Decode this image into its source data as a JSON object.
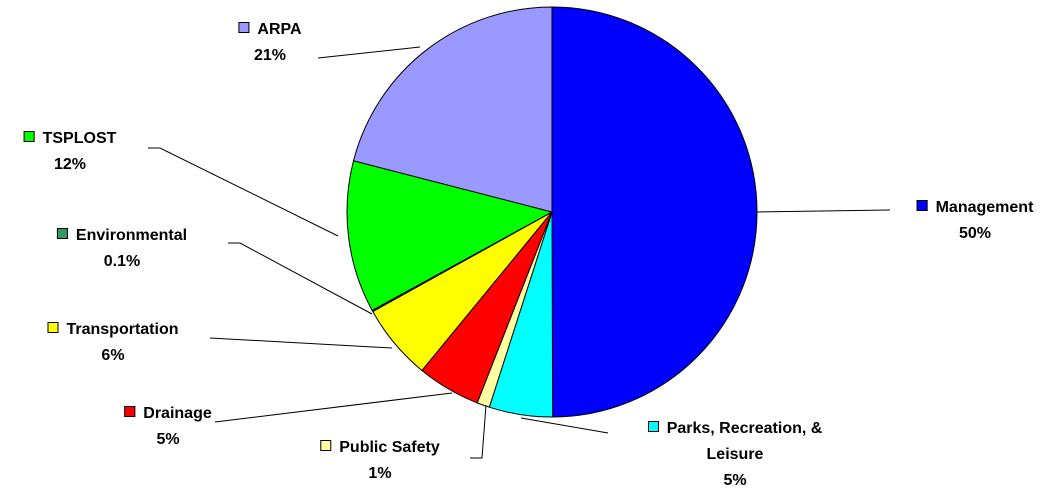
{
  "chart_data": {
    "type": "pie",
    "categories": [
      "Management",
      "Parks, Recreation, & Leisure",
      "Public Safety",
      "Drainage",
      "Transportation",
      "Environmental",
      "TSPLOST",
      "ARPA"
    ],
    "values": [
      50,
      5,
      1,
      5,
      6,
      0.1,
      12,
      21
    ],
    "value_labels": [
      "50%",
      "5%",
      "1%",
      "5%",
      "6%",
      "0.1%",
      "12%",
      "21%"
    ],
    "colors": [
      "#0000ff",
      "#00ffff",
      "#ffffa0",
      "#ff0000",
      "#ffff00",
      "#339966",
      "#00ff00",
      "#9999ff"
    ]
  }
}
